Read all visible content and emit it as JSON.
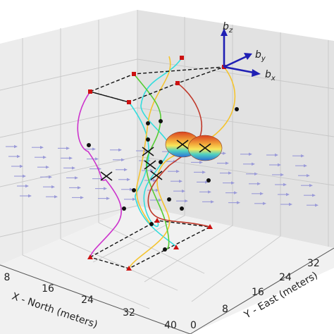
{
  "chart_data": {
    "type": "3d-line",
    "title": "",
    "x_axis": {
      "label": "X - North (meters)",
      "ticks": [
        "8",
        "16",
        "24",
        "32",
        "40"
      ]
    },
    "y_axis": {
      "label": "Y - East (meters)",
      "ticks": [
        "0",
        "8",
        "16",
        "24",
        "32"
      ]
    },
    "z_axis": {
      "label": "",
      "ticks": []
    },
    "body_frame_labels": {
      "x": "b",
      "x_sub": "x",
      "y": "b",
      "y_sub": "y",
      "z": "b",
      "z_sub": "z"
    },
    "grid": true,
    "colors": {
      "magenta": "#cc33cc",
      "cyan": "#33dddd",
      "yellow": "#f4c430",
      "green": "#55cc33",
      "red": "#c0392b",
      "frame_axes": "#1f1fb4",
      "dashed_box": "#111111",
      "wind_arrows": "#9a9ad8"
    },
    "elements": [
      "upper dashed rectangle",
      "lower dashed rectangle",
      "multicolored trajectories",
      "two rotor disks",
      "wind vector field",
      "body-frame triad"
    ]
  }
}
